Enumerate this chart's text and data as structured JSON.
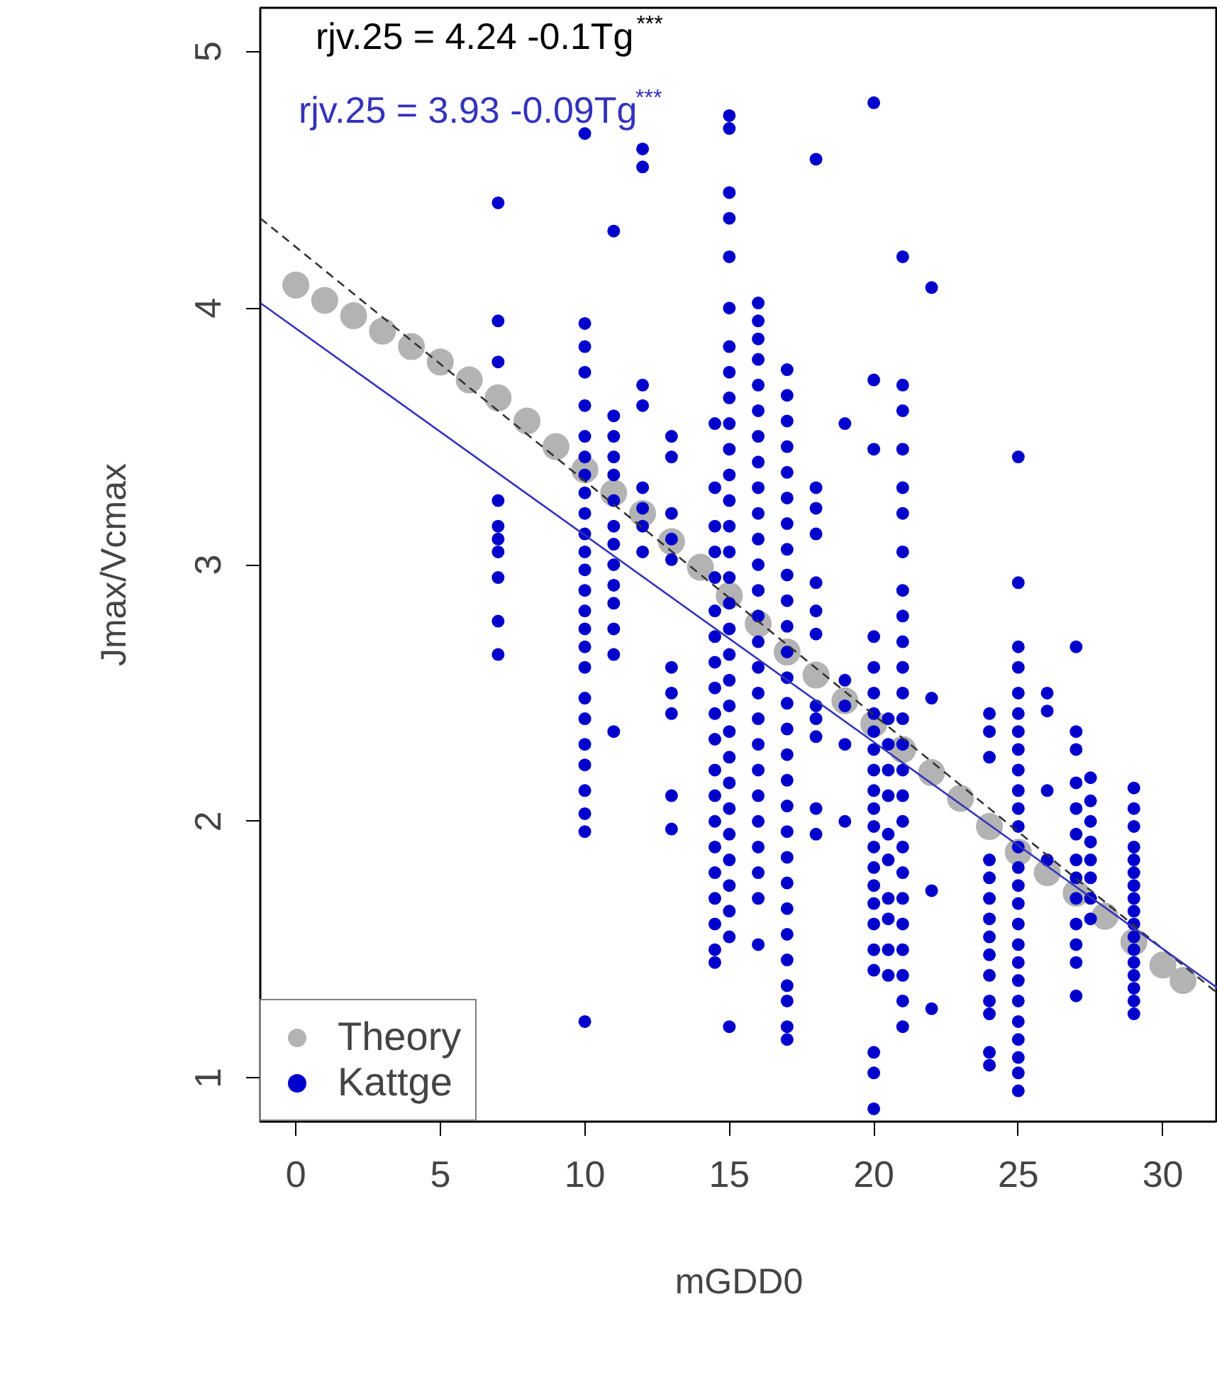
{
  "chart_data": {
    "type": "scatter",
    "xlabel": "mGDD0",
    "ylabel": "Jmax/Vcmax",
    "xlim": [
      -1.23,
      31.9
    ],
    "ylim": [
      0.83,
      5.17
    ],
    "xticks": [
      0,
      5,
      10,
      15,
      20,
      25,
      30
    ],
    "yticks": [
      1,
      2,
      3,
      4,
      5
    ],
    "grid": false,
    "legend": "bottom left",
    "annotations": [
      "rjv.25 = 4.24 -0.1Tg$^{***}$",
      "rjv.25 = 3.93 -0.09Tg$^{***}$"
    ],
    "series": [
      {
        "name": "Theory",
        "marker": "circle",
        "color": "#b3b3b3",
        "x": [
          0,
          1,
          2,
          3,
          4,
          5,
          6,
          7,
          8,
          9,
          10,
          11,
          12,
          13,
          14,
          15,
          16,
          17,
          18,
          19,
          20,
          21,
          22,
          23,
          24,
          25,
          26,
          27,
          28,
          29,
          30,
          30.7
        ],
        "values": [
          4.09,
          4.03,
          3.97,
          3.91,
          3.85,
          3.79,
          3.72,
          3.65,
          3.56,
          3.46,
          3.37,
          3.28,
          3.2,
          3.09,
          2.99,
          2.88,
          2.77,
          2.66,
          2.57,
          2.47,
          2.38,
          2.28,
          2.19,
          2.09,
          1.98,
          1.88,
          1.8,
          1.72,
          1.63,
          1.53,
          1.44,
          1.38
        ]
      },
      {
        "name": "Kattge",
        "marker": "circle",
        "color": "#0000cc",
        "x": [
          7,
          7,
          7,
          7,
          7,
          7,
          7,
          7,
          7,
          7,
          10,
          10,
          10,
          10,
          10,
          10,
          10,
          10,
          10,
          10,
          10,
          10,
          10,
          10,
          10,
          10,
          10,
          10,
          10,
          10,
          10,
          10,
          10,
          10,
          10,
          10,
          11,
          11,
          11,
          11,
          11,
          11,
          11,
          11,
          11,
          11,
          11,
          11,
          11,
          11,
          12,
          12,
          12,
          12,
          12,
          12,
          12,
          12,
          13,
          13,
          13,
          13,
          13,
          13,
          13,
          13,
          13,
          13,
          14.5,
          14.5,
          14.5,
          14.5,
          14.5,
          14.5,
          14.5,
          14.5,
          14.5,
          14.5,
          14.5,
          14.5,
          14.5,
          14.5,
          14.5,
          14.5,
          14.5,
          14.5,
          14.5,
          14.5,
          15,
          15,
          15,
          15,
          15,
          15,
          15,
          15,
          15,
          15,
          15,
          15,
          15,
          15,
          15,
          15,
          15,
          15,
          15,
          15,
          15,
          15,
          15,
          15,
          15,
          15,
          15,
          15,
          15,
          15,
          15,
          16,
          16,
          16,
          16,
          16,
          16,
          16,
          16,
          16,
          16,
          16,
          16,
          16,
          16,
          16,
          16,
          16,
          16,
          16,
          16,
          16,
          16,
          16,
          16,
          16,
          16,
          17,
          17,
          17,
          17,
          17,
          17,
          17,
          17,
          17,
          17,
          17,
          17,
          17,
          17,
          17,
          17,
          17,
          17,
          17,
          17,
          17,
          17,
          17,
          17,
          17,
          17,
          17,
          17,
          18,
          18,
          18,
          18,
          18,
          18,
          18,
          18,
          18,
          18,
          18,
          18,
          19,
          19,
          19,
          19,
          19,
          20,
          20,
          20,
          20,
          20,
          20,
          20,
          20,
          20,
          20,
          20,
          20,
          20,
          20,
          20,
          20,
          20,
          20,
          20,
          20,
          20,
          20,
          20,
          20.5,
          20.5,
          20.5,
          20.5,
          20.5,
          20.5,
          20.5,
          20.5,
          20.5,
          20.5,
          21,
          21,
          21,
          21,
          21,
          21,
          21,
          21,
          21,
          21,
          21,
          21,
          21,
          21,
          21,
          21,
          21,
          21,
          21,
          21,
          21,
          21,
          21,
          21,
          21,
          22,
          22,
          22,
          22,
          24,
          24,
          24,
          24,
          24,
          24,
          24,
          24,
          24,
          24,
          24,
          24,
          24,
          24,
          25,
          25,
          25,
          25,
          25,
          25,
          25,
          25,
          25,
          25,
          25,
          25,
          25,
          25,
          25,
          25,
          25,
          25,
          25,
          25,
          25,
          25,
          25,
          25,
          25,
          25,
          26,
          26,
          26,
          26,
          27,
          27,
          27,
          27,
          27,
          27,
          27,
          27,
          27,
          27,
          27,
          27,
          27,
          27.5,
          27.5,
          27.5,
          27.5,
          27.5,
          27.5,
          27.5,
          27.5,
          29,
          29,
          29,
          29,
          29,
          29,
          29,
          29,
          29,
          29,
          29,
          29,
          29,
          29,
          29,
          29,
          29
        ],
        "values": [
          4.41,
          3.95,
          3.79,
          3.25,
          3.15,
          3.1,
          3.05,
          2.95,
          2.78,
          2.65,
          4.68,
          3.94,
          3.85,
          3.75,
          3.62,
          3.5,
          3.42,
          3.35,
          3.28,
          3.2,
          3.12,
          3.05,
          2.98,
          2.9,
          2.82,
          2.75,
          2.68,
          2.6,
          2.48,
          2.4,
          2.3,
          2.22,
          2.12,
          2.03,
          1.96,
          1.22,
          4.3,
          3.58,
          3.5,
          3.42,
          3.35,
          3.25,
          3.15,
          3.08,
          3.0,
          2.92,
          2.85,
          2.75,
          2.65,
          2.35,
          4.62,
          4.55,
          3.7,
          3.62,
          3.3,
          3.22,
          3.15,
          3.05,
          3.5,
          3.42,
          3.2,
          3.1,
          3.02,
          2.6,
          2.5,
          2.42,
          2.1,
          1.97,
          3.55,
          3.3,
          3.15,
          3.05,
          2.95,
          2.82,
          2.72,
          2.62,
          2.52,
          2.42,
          2.32,
          2.2,
          2.1,
          2.0,
          1.9,
          1.8,
          1.7,
          1.6,
          1.5,
          1.45,
          4.75,
          4.7,
          4.45,
          4.35,
          4.2,
          4.0,
          3.85,
          3.75,
          3.65,
          3.55,
          3.45,
          3.35,
          3.25,
          3.15,
          3.05,
          2.95,
          2.85,
          2.75,
          2.65,
          2.55,
          2.45,
          2.35,
          2.25,
          2.15,
          2.05,
          1.95,
          1.85,
          1.75,
          1.65,
          1.55,
          1.2,
          4.02,
          3.95,
          3.88,
          3.8,
          3.7,
          3.6,
          3.5,
          3.4,
          3.3,
          3.2,
          3.1,
          3.0,
          2.9,
          2.8,
          2.7,
          2.6,
          2.5,
          2.4,
          2.3,
          2.2,
          2.1,
          2.0,
          1.9,
          1.8,
          1.7,
          1.52,
          3.76,
          3.66,
          3.56,
          3.46,
          3.36,
          3.26,
          3.16,
          3.06,
          2.96,
          2.86,
          2.76,
          2.66,
          2.56,
          2.46,
          2.36,
          2.26,
          2.16,
          2.06,
          1.96,
          1.86,
          1.76,
          1.66,
          1.56,
          1.46,
          1.36,
          1.3,
          1.2,
          1.15,
          4.58,
          3.3,
          3.22,
          3.12,
          2.93,
          2.82,
          2.73,
          2.45,
          2.4,
          2.33,
          2.05,
          1.95,
          3.55,
          2.55,
          2.45,
          2.3,
          2.0,
          4.8,
          3.72,
          3.45,
          2.72,
          2.6,
          2.5,
          2.42,
          2.35,
          2.28,
          2.2,
          2.12,
          2.05,
          1.98,
          1.9,
          1.82,
          1.75,
          1.68,
          1.6,
          1.5,
          1.42,
          1.1,
          1.02,
          0.88,
          2.4,
          2.3,
          2.2,
          2.1,
          1.95,
          1.85,
          1.7,
          1.62,
          1.5,
          1.4,
          4.2,
          3.7,
          3.6,
          3.45,
          3.3,
          3.2,
          3.05,
          2.9,
          2.8,
          2.7,
          2.6,
          2.5,
          2.4,
          2.3,
          2.2,
          2.1,
          2.0,
          1.9,
          1.8,
          1.7,
          1.6,
          1.5,
          1.4,
          1.3,
          1.2,
          4.08,
          2.48,
          1.73,
          1.27,
          2.42,
          2.35,
          2.25,
          1.85,
          1.78,
          1.7,
          1.62,
          1.55,
          1.48,
          1.4,
          1.3,
          1.25,
          1.1,
          1.05,
          3.42,
          2.93,
          2.68,
          2.6,
          2.5,
          2.42,
          2.35,
          2.28,
          2.2,
          2.12,
          2.05,
          1.98,
          1.9,
          1.82,
          1.75,
          1.68,
          1.6,
          1.52,
          1.45,
          1.38,
          1.3,
          1.22,
          1.15,
          1.08,
          1.02,
          0.95,
          2.5,
          2.43,
          2.12,
          1.85,
          2.68,
          2.35,
          2.28,
          2.15,
          2.05,
          1.95,
          1.85,
          1.78,
          1.7,
          1.6,
          1.52,
          1.45,
          1.32,
          2.17,
          2.08,
          2.0,
          1.92,
          1.85,
          1.78,
          1.7,
          1.62,
          2.13,
          2.05,
          1.98,
          1.9,
          1.85,
          1.8,
          1.75,
          1.7,
          1.65,
          1.6,
          1.55,
          1.5,
          1.45,
          1.4,
          1.35,
          1.3,
          1.25
        ]
      },
      {
        "type": "line",
        "color": "#333333",
        "line_style": "dashed",
        "marker": "none",
        "x": [
          -1.23,
          31.9
        ],
        "values": [
          4.35,
          1.33
        ]
      },
      {
        "type": "line",
        "color": "#3333bb",
        "line_style": "solid",
        "marker": "none",
        "x": [
          -1.23,
          31.9
        ],
        "values": [
          4.02,
          1.35
        ]
      }
    ]
  }
}
